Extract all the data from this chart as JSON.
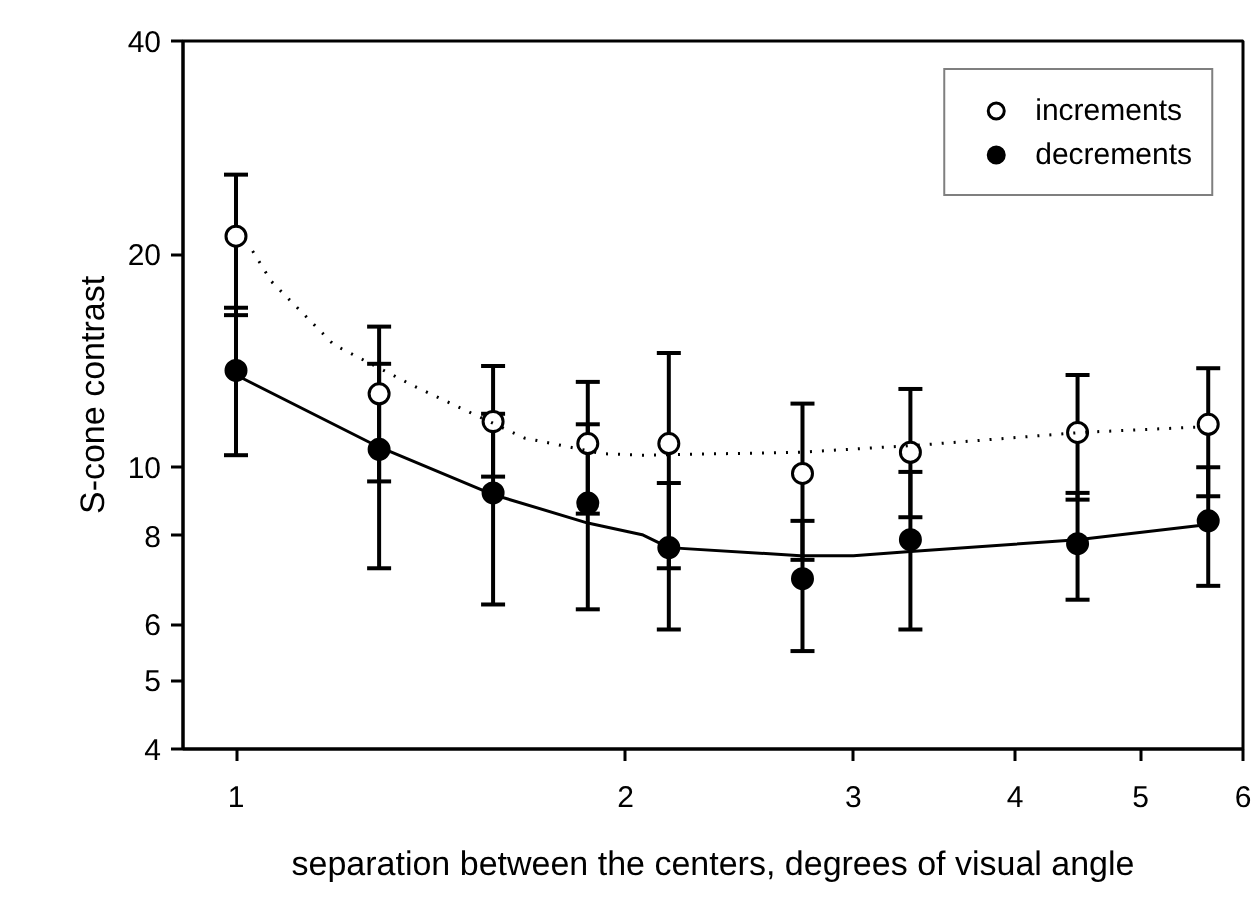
{
  "chart_data": {
    "type": "scatter",
    "xlabel": "separation between the centers, degrees of visual angle",
    "ylabel": "S-cone contrast",
    "log": "xy",
    "xlim": [
      0.91,
      6
    ],
    "xticks": [
      1,
      2,
      3,
      4,
      5,
      6
    ],
    "ylim": [
      4,
      40
    ],
    "yticks": [
      4,
      5,
      6,
      8,
      10,
      20,
      40
    ],
    "grid": false,
    "legend": "top right",
    "series": [
      {
        "name": "increments",
        "marker": "circle",
        "color": "#ffffff",
        "x": [
          1,
          1.29,
          1.58,
          1.87,
          2.16,
          2.74,
          3.32,
          4.47,
          5.64
        ],
        "values": [
          21.2,
          12.7,
          11.6,
          10.8,
          10.8,
          9.8,
          10.5,
          11.2,
          11.5
        ],
        "errors": [
          [
            16.4,
            25.9
          ],
          [
            9.55,
            15.8
          ],
          [
            9.7,
            13.9
          ],
          [
            8.6,
            13.2
          ],
          [
            7.2,
            14.5
          ],
          [
            7.4,
            12.3
          ],
          [
            8.5,
            12.9
          ],
          [
            9.0,
            13.5
          ],
          [
            9.1,
            13.8
          ]
        ]
      },
      {
        "name": "decrements",
        "marker": "circle",
        "color": "#000000",
        "x": [
          1,
          1.29,
          1.58,
          1.87,
          2.16,
          2.74,
          3.32,
          4.47,
          5.64
        ],
        "values": [
          13.7,
          10.6,
          9.2,
          8.9,
          7.7,
          6.96,
          7.9,
          7.8,
          8.4
        ],
        "errors": [
          [
            10.4,
            16.8
          ],
          [
            7.2,
            14.0
          ],
          [
            6.4,
            11.9
          ],
          [
            6.3,
            11.5
          ],
          [
            5.9,
            9.5
          ],
          [
            5.5,
            8.4
          ],
          [
            5.9,
            9.85
          ],
          [
            6.5,
            9.2
          ],
          [
            6.8,
            10.0
          ]
        ]
      },
      {
        "type": "line",
        "line_style": "dotted",
        "marker": "none",
        "color": "#000000",
        "x": [
          1.03,
          1.065,
          1.19,
          1.375,
          1.67,
          1.92,
          2.06,
          2.73,
          3.38,
          4.5,
          5.56
        ],
        "values": [
          20.2,
          18.3,
          14.9,
          13.0,
          11.0,
          10.45,
          10.4,
          10.5,
          10.75,
          11.2,
          11.4
        ]
      },
      {
        "type": "line",
        "line_style": "solid",
        "marker": "none",
        "color": "#000000",
        "x": [
          1,
          1.28,
          1.58,
          1.87,
          2.06,
          2.16,
          2.73,
          3.0,
          3.3,
          4.47,
          5.64
        ],
        "values": [
          13.5,
          10.75,
          9.15,
          8.34,
          8.03,
          7.7,
          7.5,
          7.5,
          7.6,
          7.9,
          8.3
        ]
      }
    ]
  }
}
